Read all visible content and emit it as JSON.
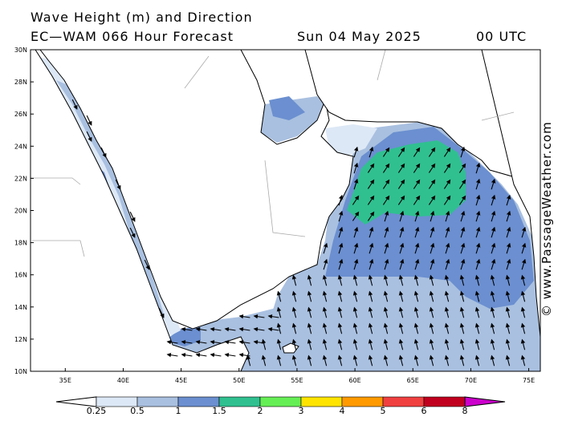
{
  "header": {
    "line1": "Wave Height (m) and Direction",
    "model": "EC—WAM 066 Hour Forecast",
    "date": "Sun 04 May 2025",
    "time": "00 UTC"
  },
  "copyright": "© www.PassageWeather.com",
  "map": {
    "lat_labels": [
      "30N",
      "28N",
      "26N",
      "24N",
      "22N",
      "20N",
      "18N",
      "16N",
      "14N",
      "12N",
      "10N"
    ],
    "lon_labels": [
      "35E",
      "40E",
      "45E",
      "50E",
      "55E",
      "60E",
      "65E",
      "70E",
      "75E"
    ],
    "lat_range": [
      10,
      30
    ],
    "lon_range": [
      32,
      76
    ]
  },
  "colorbar": {
    "labels": [
      "0.25",
      "0.5",
      "1",
      "1.5",
      "2",
      "3",
      "4",
      "5",
      "6",
      "8"
    ],
    "colors": [
      "#dde8f6",
      "#a9c0e0",
      "#6b8fd0",
      "#30c090",
      "#66ee55",
      "#ffe400",
      "#ff9a00",
      "#f04040",
      "#c0001e",
      "#cc00cc"
    ]
  }
}
